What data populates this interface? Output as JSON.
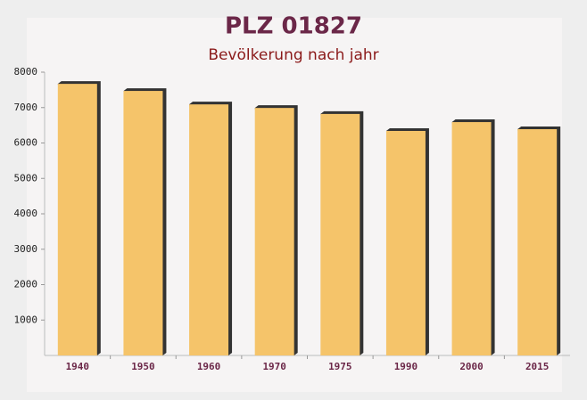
{
  "chart_data": {
    "type": "bar",
    "title": "PLZ 01827",
    "subtitle": "Bevölkerung nach jahr",
    "categories": [
      "1940",
      "1950",
      "1960",
      "1970",
      "1975",
      "1990",
      "2000",
      "2015"
    ],
    "values": [
      7670,
      7470,
      7090,
      6990,
      6820,
      6340,
      6590,
      6390
    ],
    "color": "#f5c46a",
    "ylim": [
      0,
      8000
    ],
    "yticks": [
      1000,
      2000,
      3000,
      4000,
      5000,
      6000,
      7000,
      8000
    ]
  }
}
